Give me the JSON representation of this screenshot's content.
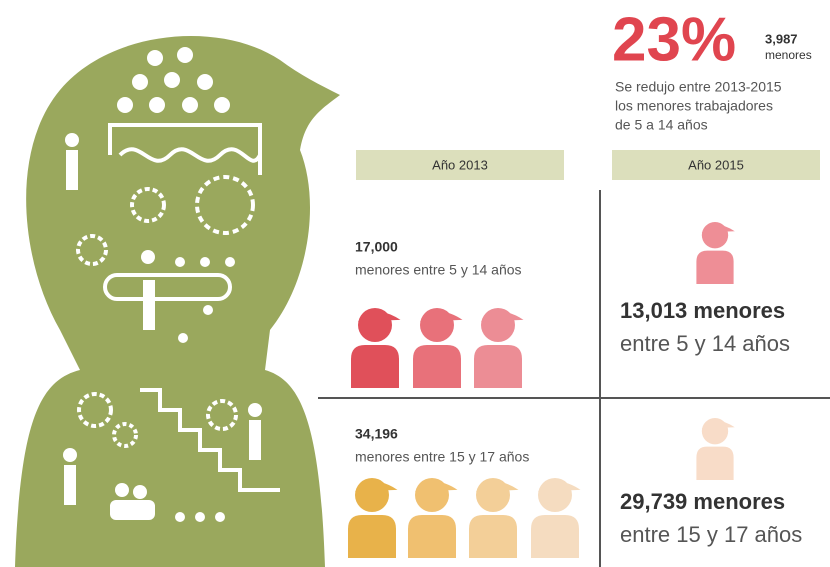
{
  "header": {
    "headline": "23%",
    "count": "3,987",
    "count_unit": "menores",
    "description": [
      "Se redujo entre 2013-2015",
      "los menores trabajadores",
      "de 5 a 14 años"
    ]
  },
  "columns": [
    "Año 2013",
    "Año 2015"
  ],
  "rows": [
    {
      "count_2013": "17,000",
      "label_2013": "menores entre 5 y 14 años",
      "count_2015": "13,013 menores",
      "label_2015": "entre 5 y 14 años"
    },
    {
      "count_2013": "34,196",
      "label_2013": "menores entre 15 y 17 años",
      "count_2015": "29,739 menores",
      "label_2015": "entre 15 y 17 años"
    }
  ]
}
